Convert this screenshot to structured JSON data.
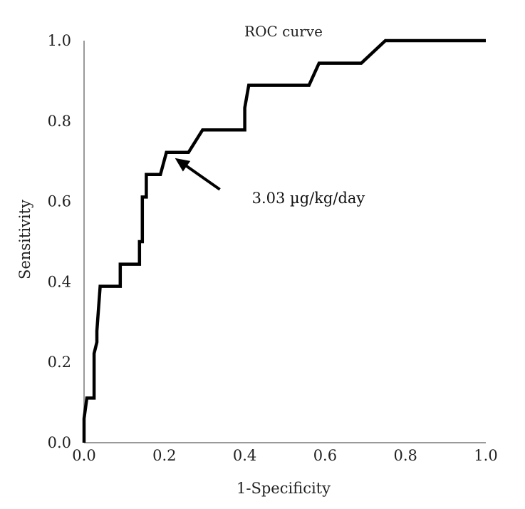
{
  "chart_data": {
    "type": "line",
    "title": "ROC curve",
    "xlabel": "1-Specificity",
    "ylabel": "Sensitivity",
    "xlim": [
      0,
      1
    ],
    "ylim": [
      0,
      1
    ],
    "x_ticks": [
      "0.0",
      "0.2",
      "0.4",
      "0.6",
      "0.8",
      "1.0"
    ],
    "y_ticks": [
      "0.0",
      "0.2",
      "0.4",
      "0.6",
      "0.8",
      "1.0"
    ],
    "grid": false,
    "legend": "none",
    "series": [
      {
        "name": "ROC",
        "x": [
          0.0,
          0.0,
          0.007,
          0.025,
          0.025,
          0.032,
          0.032,
          0.04,
          0.04,
          0.09,
          0.09,
          0.138,
          0.138,
          0.145,
          0.145,
          0.155,
          0.155,
          0.165,
          0.165,
          0.19,
          0.205,
          0.26,
          0.295,
          0.4,
          0.4,
          0.41,
          0.56,
          0.585,
          0.69,
          0.75,
          1.0
        ],
        "y": [
          0.0,
          0.06,
          0.111,
          0.111,
          0.222,
          0.25,
          0.278,
          0.389,
          0.389,
          0.389,
          0.444,
          0.444,
          0.5,
          0.5,
          0.611,
          0.611,
          0.667,
          0.667,
          0.667,
          0.667,
          0.722,
          0.722,
          0.778,
          0.778,
          0.833,
          0.889,
          0.889,
          0.944,
          0.944,
          1.0,
          1.0
        ]
      }
    ],
    "annotations": [
      {
        "text": "3.03 µg/kg/day",
        "x": 0.205,
        "y": 0.722
      }
    ]
  }
}
